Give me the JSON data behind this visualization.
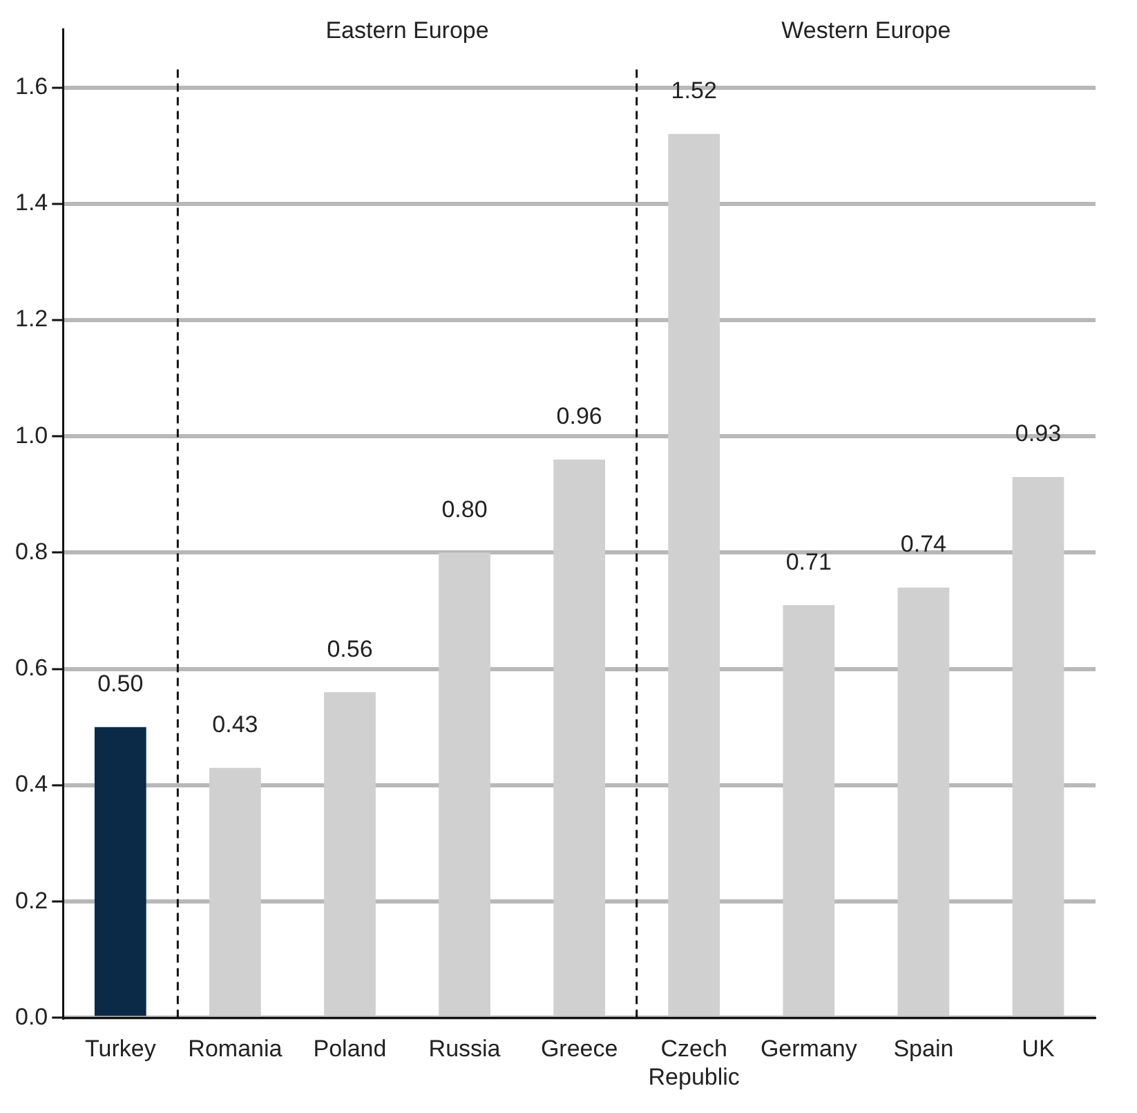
{
  "chart_data": {
    "type": "bar",
    "categories": [
      "Turkey",
      "Romania",
      "Poland",
      "Russia",
      "Greece",
      "Czech Republic",
      "Germany",
      "Spain",
      "UK"
    ],
    "values": [
      0.5,
      0.43,
      0.56,
      0.8,
      0.96,
      1.52,
      0.71,
      0.74,
      0.93
    ],
    "value_labels": [
      "0.50",
      "0.43",
      "0.56",
      "0.80",
      "0.96",
      "1.52",
      "0.71",
      "0.74",
      "0.93"
    ],
    "colors": [
      "#0b2a47",
      "#d0d0d0",
      "#d0d0d0",
      "#d0d0d0",
      "#d0d0d0",
      "#d0d0d0",
      "#d0d0d0",
      "#d0d0d0",
      "#d0d0d0"
    ],
    "ylim": [
      0,
      1.7
    ],
    "yticks": [
      {
        "value": 0,
        "label": "0.0"
      },
      0.2,
      0.4,
      0.6,
      0.8,
      {
        "value": 1,
        "label": "1.0"
      },
      1.2,
      1.4,
      1.6
    ],
    "grid": "y",
    "annotations": [
      "Eastern Europe",
      "Western Europe"
    ]
  }
}
